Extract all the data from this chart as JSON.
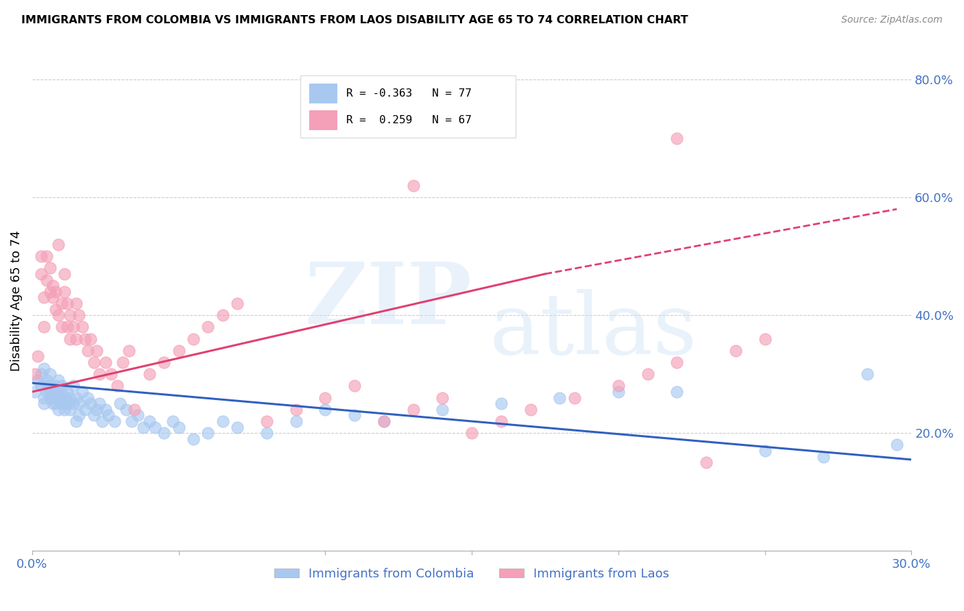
{
  "title": "IMMIGRANTS FROM COLOMBIA VS IMMIGRANTS FROM LAOS DISABILITY AGE 65 TO 74 CORRELATION CHART",
  "source": "Source: ZipAtlas.com",
  "ylabel": "Disability Age 65 to 74",
  "xlim": [
    0.0,
    0.3
  ],
  "ylim": [
    0.0,
    0.85
  ],
  "colombia_color": "#a8c8f0",
  "laos_color": "#f4a0b8",
  "colombia_R": -0.363,
  "colombia_N": 77,
  "laos_R": 0.259,
  "laos_N": 67,
  "grid_color": "#cccccc",
  "tick_label_color": "#4472c4",
  "colombia_trend": [
    0.0,
    0.3,
    0.285,
    0.155
  ],
  "laos_solid_trend": [
    0.0,
    0.175,
    0.27,
    0.47
  ],
  "laos_dashed_trend": [
    0.175,
    0.295,
    0.47,
    0.58
  ],
  "colombia_scatter_x": [
    0.001,
    0.002,
    0.003,
    0.003,
    0.004,
    0.004,
    0.004,
    0.005,
    0.005,
    0.005,
    0.006,
    0.006,
    0.006,
    0.006,
    0.007,
    0.007,
    0.007,
    0.008,
    0.008,
    0.008,
    0.009,
    0.009,
    0.009,
    0.01,
    0.01,
    0.01,
    0.011,
    0.011,
    0.012,
    0.012,
    0.013,
    0.013,
    0.014,
    0.014,
    0.015,
    0.015,
    0.016,
    0.016,
    0.017,
    0.018,
    0.019,
    0.02,
    0.021,
    0.022,
    0.023,
    0.024,
    0.025,
    0.026,
    0.028,
    0.03,
    0.032,
    0.034,
    0.036,
    0.038,
    0.04,
    0.042,
    0.045,
    0.048,
    0.05,
    0.055,
    0.06,
    0.065,
    0.07,
    0.08,
    0.09,
    0.1,
    0.11,
    0.12,
    0.14,
    0.16,
    0.18,
    0.2,
    0.22,
    0.25,
    0.27,
    0.285,
    0.295
  ],
  "colombia_scatter_y": [
    0.27,
    0.29,
    0.28,
    0.3,
    0.26,
    0.25,
    0.31,
    0.27,
    0.29,
    0.28,
    0.26,
    0.27,
    0.3,
    0.28,
    0.25,
    0.27,
    0.26,
    0.28,
    0.25,
    0.27,
    0.24,
    0.26,
    0.29,
    0.25,
    0.27,
    0.28,
    0.26,
    0.24,
    0.25,
    0.27,
    0.24,
    0.26,
    0.25,
    0.28,
    0.22,
    0.26,
    0.25,
    0.23,
    0.27,
    0.24,
    0.26,
    0.25,
    0.23,
    0.24,
    0.25,
    0.22,
    0.24,
    0.23,
    0.22,
    0.25,
    0.24,
    0.22,
    0.23,
    0.21,
    0.22,
    0.21,
    0.2,
    0.22,
    0.21,
    0.19,
    0.2,
    0.22,
    0.21,
    0.2,
    0.22,
    0.24,
    0.23,
    0.22,
    0.24,
    0.25,
    0.26,
    0.27,
    0.27,
    0.17,
    0.16,
    0.3,
    0.18
  ],
  "laos_scatter_x": [
    0.001,
    0.002,
    0.003,
    0.003,
    0.004,
    0.004,
    0.005,
    0.005,
    0.006,
    0.006,
    0.007,
    0.007,
    0.008,
    0.008,
    0.009,
    0.009,
    0.01,
    0.01,
    0.011,
    0.011,
    0.012,
    0.012,
    0.013,
    0.013,
    0.014,
    0.015,
    0.015,
    0.016,
    0.017,
    0.018,
    0.019,
    0.02,
    0.021,
    0.022,
    0.023,
    0.025,
    0.027,
    0.029,
    0.031,
    0.033,
    0.035,
    0.04,
    0.045,
    0.05,
    0.055,
    0.06,
    0.065,
    0.07,
    0.08,
    0.09,
    0.1,
    0.11,
    0.12,
    0.13,
    0.14,
    0.15,
    0.16,
    0.17,
    0.185,
    0.2,
    0.21,
    0.22,
    0.23,
    0.24,
    0.25,
    0.13,
    0.22
  ],
  "laos_scatter_y": [
    0.3,
    0.33,
    0.5,
    0.47,
    0.38,
    0.43,
    0.46,
    0.5,
    0.44,
    0.48,
    0.43,
    0.45,
    0.41,
    0.44,
    0.4,
    0.52,
    0.38,
    0.42,
    0.44,
    0.47,
    0.38,
    0.42,
    0.36,
    0.4,
    0.38,
    0.36,
    0.42,
    0.4,
    0.38,
    0.36,
    0.34,
    0.36,
    0.32,
    0.34,
    0.3,
    0.32,
    0.3,
    0.28,
    0.32,
    0.34,
    0.24,
    0.3,
    0.32,
    0.34,
    0.36,
    0.38,
    0.4,
    0.42,
    0.22,
    0.24,
    0.26,
    0.28,
    0.22,
    0.24,
    0.26,
    0.2,
    0.22,
    0.24,
    0.26,
    0.28,
    0.3,
    0.32,
    0.15,
    0.34,
    0.36,
    0.62,
    0.7
  ]
}
